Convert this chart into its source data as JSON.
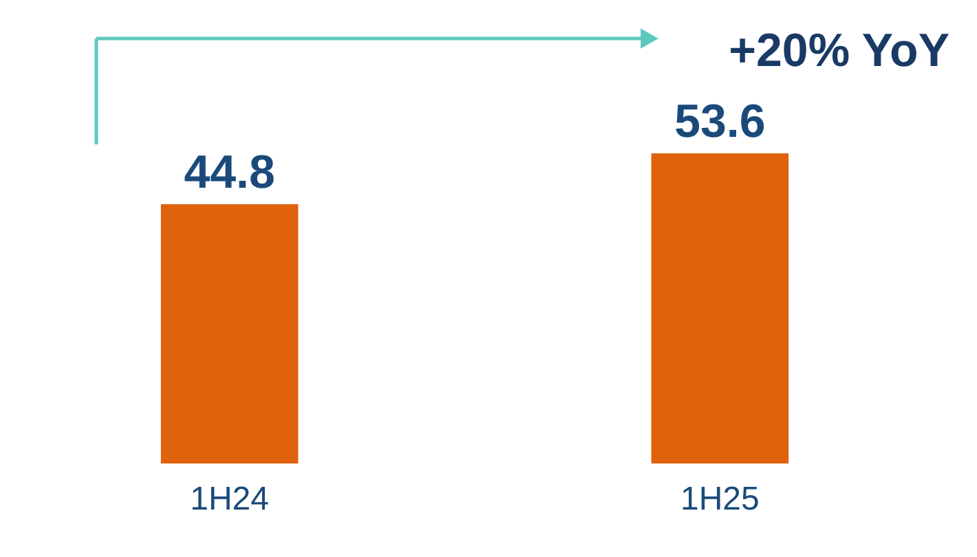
{
  "chart_data": {
    "type": "bar",
    "categories": [
      "1H24",
      "1H25"
    ],
    "series": [
      {
        "color": "#e0620c",
        "values": [
          44.8,
          53.6
        ]
      }
    ],
    "data_labels": true,
    "annotations": [
      "+20% YoY"
    ],
    "grid": false,
    "tick_labels": "x"
  }
}
